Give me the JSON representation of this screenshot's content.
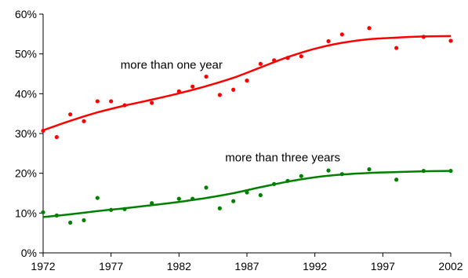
{
  "chart_data": {
    "type": "scatter",
    "title": "",
    "xlabel": "",
    "ylabel": "",
    "xlim": [
      1972,
      2002
    ],
    "ylim": [
      0,
      60
    ],
    "x_ticks": [
      "1972",
      "1977",
      "1982",
      "1987",
      "1992",
      "1997",
      "2002"
    ],
    "y_ticks": [
      "0%",
      "10%",
      "20%",
      "30%",
      "40%",
      "50%",
      "60%"
    ],
    "grid": false,
    "legend": "none",
    "series": [
      {
        "name": "more than one year",
        "color": "#ff0000",
        "points": [
          [
            1972,
            30.7
          ],
          [
            1973,
            29.1
          ],
          [
            1974,
            34.8
          ],
          [
            1975,
            33.1
          ],
          [
            1976,
            38.1
          ],
          [
            1977,
            38.1
          ],
          [
            1978,
            37.1
          ],
          [
            1980,
            37.7
          ],
          [
            1982,
            40.6
          ],
          [
            1983,
            41.8
          ],
          [
            1984,
            44.3
          ],
          [
            1985,
            39.7
          ],
          [
            1986,
            41.0
          ],
          [
            1987,
            43.3
          ],
          [
            1988,
            47.5
          ],
          [
            1989,
            48.4
          ],
          [
            1990,
            49.0
          ],
          [
            1991,
            49.4
          ],
          [
            1993,
            53.2
          ],
          [
            1994,
            54.9
          ],
          [
            1996,
            56.5
          ],
          [
            1998,
            51.5
          ],
          [
            2000,
            54.3
          ],
          [
            2002,
            53.3
          ]
        ],
        "trend": [
          [
            1972,
            30.8
          ],
          [
            1974,
            33.2
          ],
          [
            1976,
            35.3
          ],
          [
            1978,
            37.0
          ],
          [
            1980,
            38.5
          ],
          [
            1982,
            40.1
          ],
          [
            1984,
            41.9
          ],
          [
            1986,
            44.0
          ],
          [
            1988,
            46.6
          ],
          [
            1990,
            49.2
          ],
          [
            1992,
            51.3
          ],
          [
            1994,
            52.8
          ],
          [
            1996,
            53.7
          ],
          [
            1998,
            54.1
          ],
          [
            2000,
            54.4
          ],
          [
            2002,
            54.5
          ]
        ]
      },
      {
        "name": "more than three years",
        "color": "#008000",
        "points": [
          [
            1972,
            10.2
          ],
          [
            1973,
            9.4
          ],
          [
            1974,
            7.6
          ],
          [
            1975,
            8.2
          ],
          [
            1976,
            13.8
          ],
          [
            1977,
            10.8
          ],
          [
            1978,
            11.0
          ],
          [
            1980,
            12.5
          ],
          [
            1982,
            13.6
          ],
          [
            1983,
            13.6
          ],
          [
            1984,
            16.4
          ],
          [
            1985,
            11.2
          ],
          [
            1986,
            13.0
          ],
          [
            1987,
            15.2
          ],
          [
            1988,
            14.5
          ],
          [
            1989,
            17.3
          ],
          [
            1990,
            18.1
          ],
          [
            1991,
            19.3
          ],
          [
            1993,
            20.7
          ],
          [
            1994,
            19.8
          ],
          [
            1996,
            21.0
          ],
          [
            1998,
            18.4
          ],
          [
            2000,
            20.6
          ],
          [
            2002,
            20.6
          ]
        ],
        "trend": [
          [
            1972,
            9.0
          ],
          [
            1974,
            9.7
          ],
          [
            1976,
            10.5
          ],
          [
            1978,
            11.2
          ],
          [
            1980,
            12.0
          ],
          [
            1982,
            12.8
          ],
          [
            1984,
            13.8
          ],
          [
            1986,
            15.0
          ],
          [
            1988,
            16.5
          ],
          [
            1990,
            17.9
          ],
          [
            1992,
            19.0
          ],
          [
            1994,
            19.7
          ],
          [
            1996,
            20.1
          ],
          [
            1998,
            20.3
          ],
          [
            2000,
            20.5
          ],
          [
            2002,
            20.6
          ]
        ]
      }
    ],
    "annotations": [
      {
        "text": "more than one year",
        "x": 1977.7,
        "y": 46.3
      },
      {
        "text": "more than three years",
        "x": 1985.4,
        "y": 23.0
      }
    ]
  }
}
